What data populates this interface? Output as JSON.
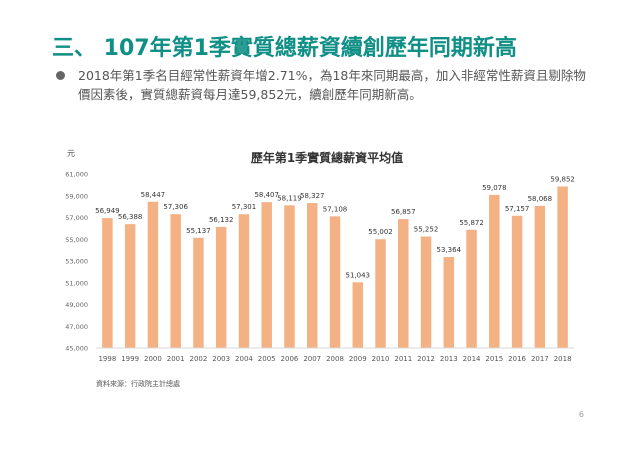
{
  "slide": {
    "title": "三、 107年第1季實質總薪資續創歷年同期新高",
    "bullet_text": "2018年第1季名目經常性薪資年增2.71%，為18年來同期最高，加入非經常性薪資且剔除物價因素後，實質總薪資每月達59,852元，續創歷年同期新高。",
    "source_note": "資料來源：行政院主計總處",
    "page_number": "6"
  },
  "colors": {
    "title": "#0f8f86",
    "bar": "#f4b183",
    "text": "#555555"
  },
  "chart_data": {
    "type": "bar",
    "title": "歷年第1季實質總薪資平均值",
    "ylabel": "元",
    "xlabel": "",
    "ylim": [
      45000,
      61000
    ],
    "yticks": [
      45000,
      47000,
      49000,
      51000,
      53000,
      55000,
      57000,
      59000,
      61000
    ],
    "ytick_labels": [
      "45,000",
      "47,000",
      "49,000",
      "51,000",
      "53,000",
      "55,000",
      "57,000",
      "59,000",
      "61,000"
    ],
    "grid": false,
    "categories": [
      "1998",
      "1999",
      "2000",
      "2001",
      "2002",
      "2003",
      "2004",
      "2005",
      "2006",
      "2007",
      "2008",
      "2009",
      "2010",
      "2011",
      "2012",
      "2013",
      "2014",
      "2015",
      "2016",
      "2017",
      "2018"
    ],
    "values": [
      56949,
      56388,
      58447,
      57306,
      55137,
      56132,
      57301,
      58407,
      58119,
      58327,
      57108,
      51043,
      55002,
      56857,
      55252,
      53364,
      55872,
      59078,
      57157,
      58068,
      59852
    ],
    "value_labels": [
      "56,949",
      "56,388",
      "58,447",
      "57,306",
      "55,137",
      "56,132",
      "57,301",
      "58,407",
      "58,119",
      "58,327",
      "57,108",
      "51,043",
      "55,002",
      "56,857",
      "55,252",
      "53,364",
      "55,872",
      "59,078",
      "57,157",
      "58,068",
      "59,852"
    ]
  }
}
